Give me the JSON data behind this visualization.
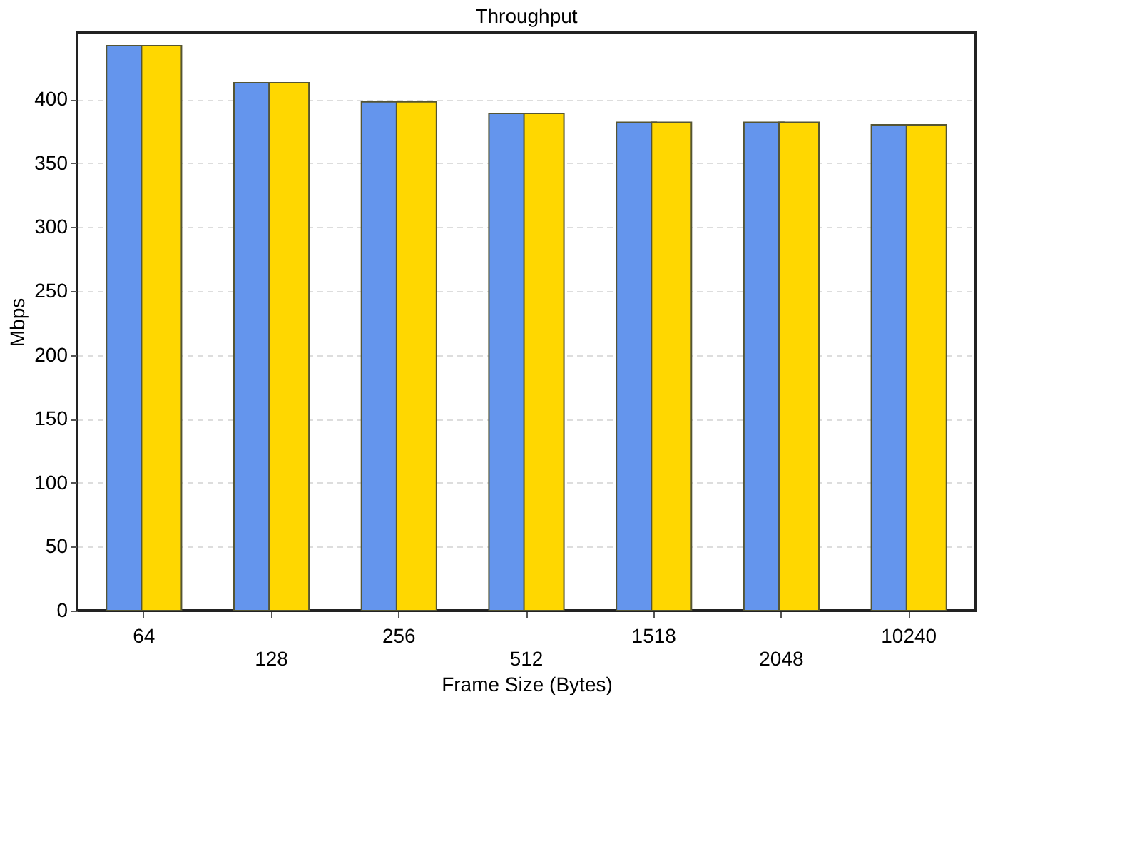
{
  "chart_data": {
    "type": "bar",
    "title": "Throughput",
    "xlabel": "Frame Size (Bytes)",
    "ylabel": "Mbps",
    "categories": [
      "64",
      "128",
      "256",
      "512",
      "1518",
      "2048",
      "10240"
    ],
    "series": [
      {
        "color": "#6495ed",
        "values": [
          442,
          413,
          398,
          389,
          382,
          382,
          380
        ]
      },
      {
        "color": "#ffd700",
        "values": [
          442,
          413,
          398,
          389,
          382,
          382,
          380
        ]
      }
    ],
    "ylim": [
      0,
      452
    ],
    "yticks": [
      0,
      50,
      100,
      150,
      200,
      250,
      300,
      350,
      400
    ],
    "grid": "y",
    "legend": false
  }
}
